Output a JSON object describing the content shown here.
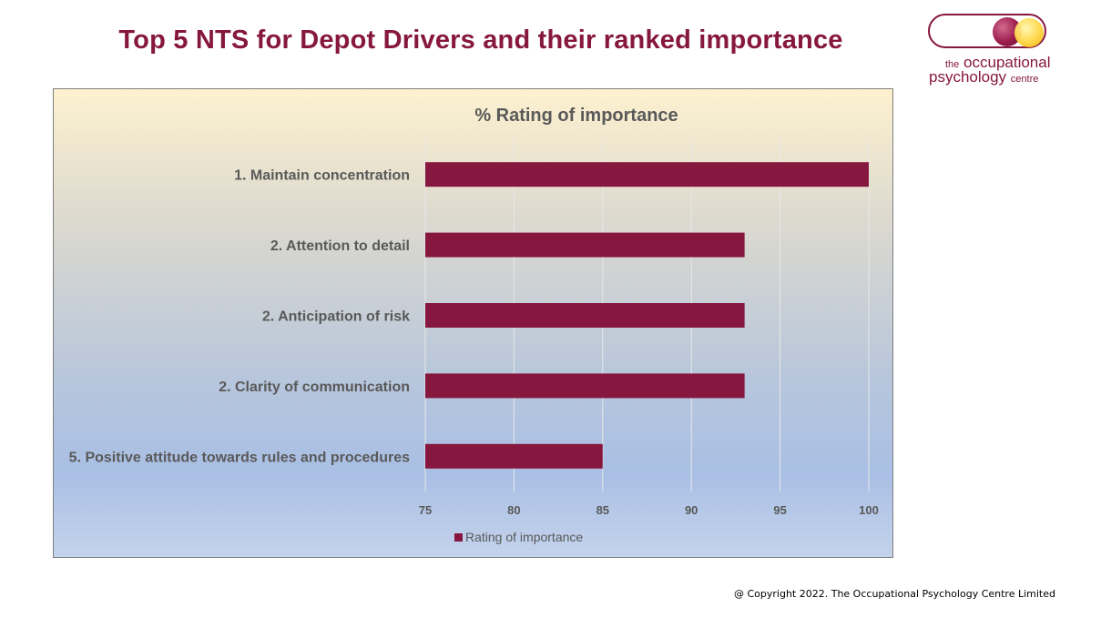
{
  "slide": {
    "title": "Top 5 NTS for Depot Drivers and their ranked importance",
    "copyright": "@ Copyright 2022. The Occupational Psychology Centre Limited"
  },
  "logo": {
    "line1_prefix": "the",
    "line1_main": "occupational",
    "line2_main": "psychology",
    "line2_suffix": "centre"
  },
  "colors": {
    "accent": "#86173f",
    "bar": "#86173f",
    "axis_text": "#595959",
    "gridline": "#e8e8e8"
  },
  "chart_data": {
    "type": "bar",
    "orientation": "horizontal",
    "title": "% Rating of importance",
    "categories": [
      "1. Maintain concentration",
      "2. Attention to detail",
      "2. Anticipation of risk",
      "2. Clarity of communication",
      "5. Positive attitude towards rules and procedures"
    ],
    "series": [
      {
        "name": "Rating of importance",
        "values": [
          100,
          93,
          93,
          93,
          85
        ]
      }
    ],
    "xlim": [
      75,
      100
    ],
    "xticks": [
      75,
      80,
      85,
      90,
      95,
      100
    ],
    "grid": true,
    "legend": "bottom",
    "xlabel": "",
    "ylabel": ""
  }
}
